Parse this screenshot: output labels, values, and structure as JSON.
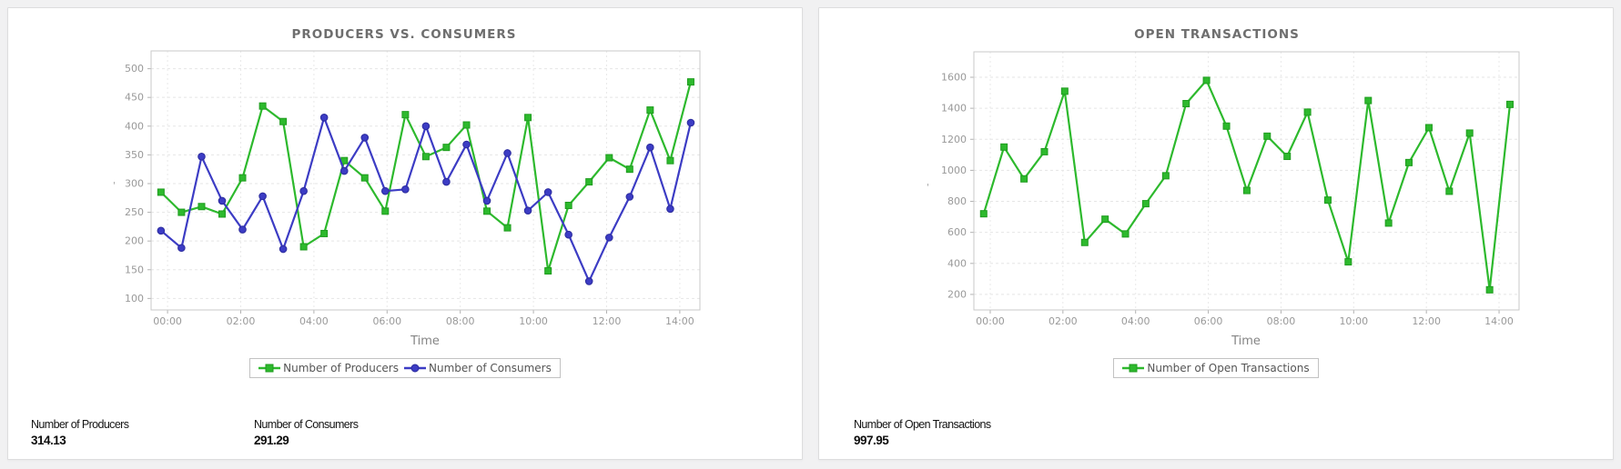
{
  "page": {
    "background": "#f1f1f2",
    "panel_border": "#ddddde"
  },
  "chart_data": [
    {
      "type": "line",
      "title": "PRODUCERS VS. CONSUMERS",
      "xlabel": "Time",
      "y_axis_mark": "'",
      "grid": true,
      "legend_position": "bottom",
      "x_tick_labels": [
        "00:00",
        "02:00",
        "04:00",
        "06:00",
        "08:00",
        "10:00",
        "12:00",
        "14:00"
      ],
      "x_tick_hours": [
        0,
        2,
        4,
        6,
        8,
        10,
        12,
        14
      ],
      "x_range_hours": [
        -0.45,
        14.55
      ],
      "y_ticks": [
        100,
        150,
        200,
        250,
        300,
        350,
        400,
        450,
        500
      ],
      "y_range": [
        80,
        531
      ],
      "x_hours": [
        -0.18,
        0.38,
        0.93,
        1.49,
        2.05,
        2.6,
        3.16,
        3.72,
        4.28,
        4.83,
        5.39,
        5.95,
        6.5,
        7.06,
        7.62,
        8.17,
        8.73,
        9.29,
        9.85,
        10.4,
        10.96,
        11.52,
        12.07,
        12.63,
        13.19,
        13.74,
        14.3
      ],
      "series": [
        {
          "name": "Number of Producers",
          "color": "#2db92d",
          "marker_color": "#1f9c1f",
          "marker": "square",
          "values": [
            285,
            250,
            260,
            247,
            310,
            435,
            408,
            190,
            213,
            340,
            310,
            252,
            420,
            347,
            363,
            402,
            252,
            223,
            415,
            148,
            262,
            303,
            345,
            325,
            428,
            340,
            477
          ]
        },
        {
          "name": "Number of Consumers",
          "color": "#3c3cc4",
          "marker_color": "#2b2b9d",
          "marker": "circle",
          "values": [
            218,
            188,
            347,
            270,
            220,
            278,
            186,
            287,
            415,
            322,
            380,
            287,
            290,
            400,
            303,
            368,
            270,
            353,
            253,
            285,
            211,
            130,
            206,
            277,
            363,
            256,
            406
          ]
        }
      ],
      "summary": [
        {
          "label": "Number of Producers",
          "value": "314.13"
        },
        {
          "label": "Number of Consumers",
          "value": "291.29"
        }
      ]
    },
    {
      "type": "line",
      "title": "OPEN TRANSACTIONS",
      "xlabel": "Time",
      "y_axis_mark": "'",
      "grid": true,
      "legend_position": "bottom",
      "x_tick_labels": [
        "00:00",
        "02:00",
        "04:00",
        "06:00",
        "08:00",
        "10:00",
        "12:00",
        "14:00"
      ],
      "x_tick_hours": [
        0,
        2,
        4,
        6,
        8,
        10,
        12,
        14
      ],
      "x_range_hours": [
        -0.45,
        14.55
      ],
      "y_ticks": [
        200,
        400,
        600,
        800,
        1000,
        1200,
        1400,
        1600
      ],
      "y_range": [
        100,
        1764
      ],
      "x_hours": [
        -0.18,
        0.38,
        0.93,
        1.49,
        2.05,
        2.6,
        3.16,
        3.72,
        4.28,
        4.83,
        5.39,
        5.95,
        6.5,
        7.06,
        7.62,
        8.17,
        8.73,
        9.29,
        9.85,
        10.4,
        10.96,
        11.52,
        12.07,
        12.63,
        13.19,
        13.74,
        14.3
      ],
      "series": [
        {
          "name": "Number of Open Transactions",
          "color": "#2db92d",
          "marker_color": "#1f9c1f",
          "marker": "square",
          "values": [
            720,
            1150,
            945,
            1120,
            1510,
            535,
            685,
            590,
            785,
            965,
            1430,
            1580,
            1285,
            870,
            1220,
            1090,
            1375,
            808,
            410,
            1450,
            660,
            1050,
            1275,
            865,
            1240,
            230,
            1425
          ]
        }
      ],
      "summary": [
        {
          "label": "Number of Open Transactions",
          "value": "997.95"
        }
      ]
    }
  ]
}
